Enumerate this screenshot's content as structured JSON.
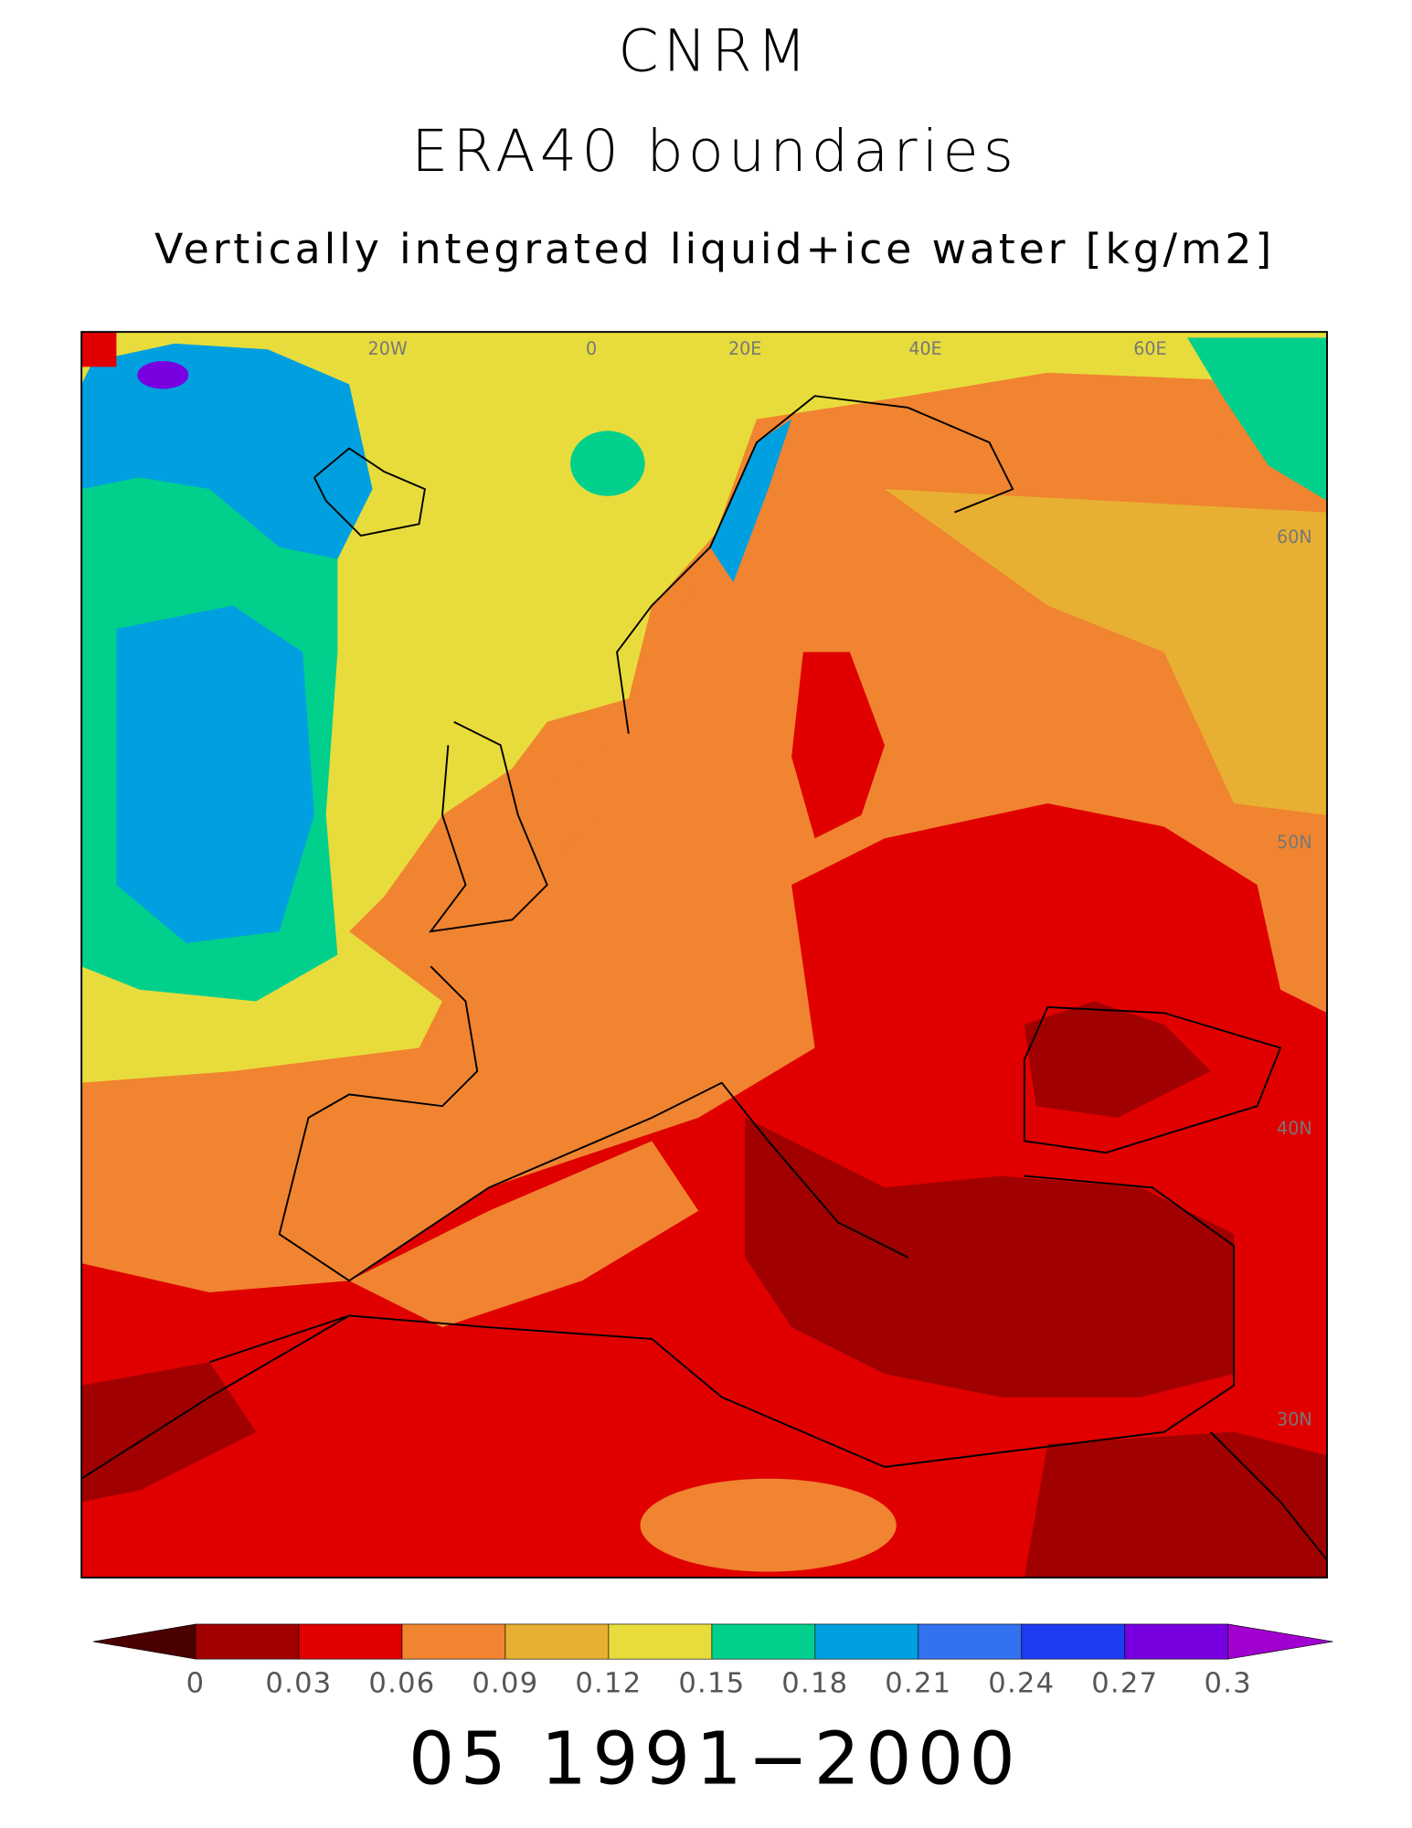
{
  "title": "CNRM",
  "subtitle": "ERA40 boundaries",
  "variable": "Vertically integrated liquid+ice water [kg/m2]",
  "map": {
    "lon_labels": [
      "20W",
      "0",
      "20E",
      "40E",
      "60E"
    ],
    "lat_labels": [
      "60N",
      "50N",
      "40N",
      "30N"
    ]
  },
  "colorbar": {
    "ticks": [
      0,
      0.03,
      0.06,
      0.09,
      0.12,
      0.15,
      0.18,
      0.21,
      0.24,
      0.27,
      0.3
    ],
    "colors": [
      "#4a0000",
      "#a00000",
      "#e00000",
      "#f08430",
      "#e8b032",
      "#e8dc3c",
      "#00d08c",
      "#00a0e0",
      "#3272f0",
      "#1e3cf0",
      "#7800e0",
      "#a000d0"
    ]
  },
  "footer": "05 1991−2000"
}
